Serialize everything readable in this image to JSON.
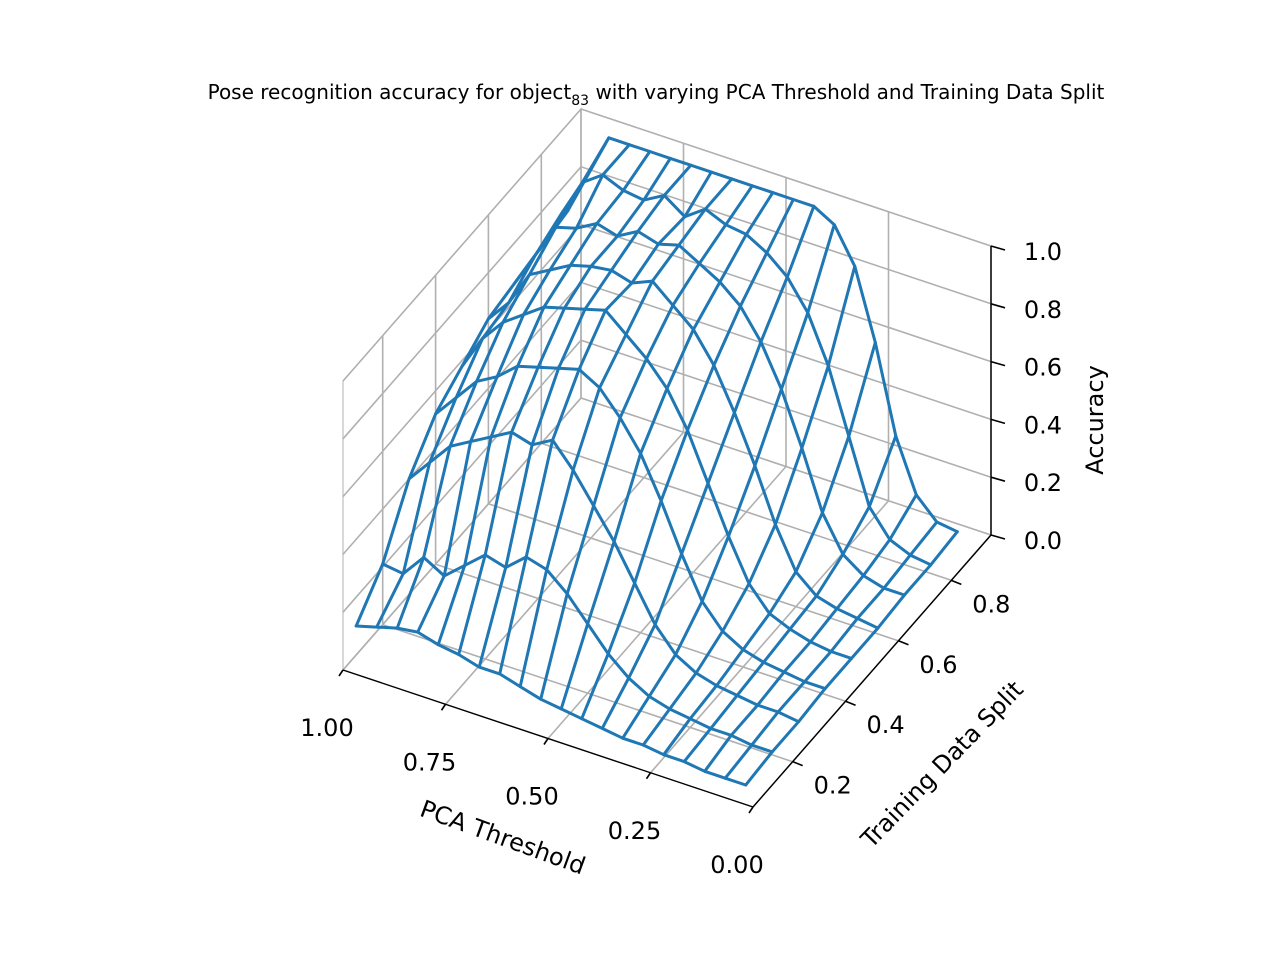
{
  "chart_data": {
    "type": "wireframe-3d",
    "title": {
      "prefix": "Pose recognition accuracy for object",
      "subscript": "83",
      "suffix": " with varying PCA Threshold and Training Data Split"
    },
    "xlabel": "PCA Threshold",
    "ylabel": "Training Data Split",
    "zlabel": "Accuracy",
    "xlim": [
      1.0,
      0.0
    ],
    "ylim": [
      0.05,
      0.95
    ],
    "zlim": [
      0.0,
      1.0
    ],
    "xticks": [
      {
        "value": 1.0,
        "label": "1.00"
      },
      {
        "value": 0.75,
        "label": "0.75"
      },
      {
        "value": 0.5,
        "label": "0.50"
      },
      {
        "value": 0.25,
        "label": "0.25"
      },
      {
        "value": 0.0,
        "label": "0.00"
      }
    ],
    "yticks": [
      {
        "value": 0.2,
        "label": "0.2"
      },
      {
        "value": 0.4,
        "label": "0.4"
      },
      {
        "value": 0.6,
        "label": "0.6"
      },
      {
        "value": 0.8,
        "label": "0.8"
      }
    ],
    "zticks": [
      {
        "value": 0.0,
        "label": "0.0"
      },
      {
        "value": 0.2,
        "label": "0.2"
      },
      {
        "value": 0.4,
        "label": "0.4"
      },
      {
        "value": 0.6,
        "label": "0.6"
      },
      {
        "value": 0.8,
        "label": "0.8"
      },
      {
        "value": 1.0,
        "label": "1.0"
      }
    ],
    "grid": true,
    "color": "#1f77b4",
    "pca_threshold": [
      1.0,
      0.95,
      0.9,
      0.85,
      0.8,
      0.75,
      0.7,
      0.65,
      0.6,
      0.55,
      0.5,
      0.45,
      0.4,
      0.35,
      0.3,
      0.25,
      0.2,
      0.15,
      0.1,
      0.05
    ],
    "training_split": [
      0.1,
      0.2,
      0.3,
      0.4,
      0.5,
      0.6,
      0.7,
      0.8,
      0.9
    ],
    "accuracy": [
      [
        0.1,
        0.21,
        0.4,
        0.52,
        0.58,
        0.64,
        0.66,
        0.68,
        0.7
      ],
      [
        0.12,
        0.2,
        0.48,
        0.6,
        0.7,
        0.72,
        0.78,
        0.82,
        0.85
      ],
      [
        0.14,
        0.28,
        0.56,
        0.68,
        0.78,
        0.84,
        0.9,
        0.95,
        1.0
      ],
      [
        0.15,
        0.24,
        0.6,
        0.72,
        0.83,
        0.88,
        0.92,
        1.0,
        1.0
      ],
      [
        0.13,
        0.3,
        0.64,
        0.78,
        0.88,
        0.92,
        0.96,
        0.97,
        1.0
      ],
      [
        0.12,
        0.36,
        0.68,
        0.8,
        0.9,
        0.94,
        0.94,
        0.96,
        1.0
      ],
      [
        0.1,
        0.34,
        0.66,
        0.82,
        0.92,
        0.95,
        0.98,
        1.0,
        1.0
      ],
      [
        0.1,
        0.4,
        0.7,
        0.84,
        0.94,
        0.93,
        0.96,
        0.95,
        1.0
      ],
      [
        0.08,
        0.38,
        0.62,
        0.8,
        0.88,
        0.96,
        0.98,
        1.0,
        1.0
      ],
      [
        0.06,
        0.32,
        0.52,
        0.72,
        0.82,
        0.9,
        0.94,
        0.97,
        1.0
      ],
      [
        0.05,
        0.24,
        0.42,
        0.62,
        0.74,
        0.84,
        0.9,
        0.96,
        1.0
      ],
      [
        0.04,
        0.16,
        0.3,
        0.48,
        0.62,
        0.74,
        0.84,
        0.92,
        1.0
      ],
      [
        0.03,
        0.1,
        0.18,
        0.32,
        0.46,
        0.6,
        0.74,
        0.86,
        1.0
      ],
      [
        0.02,
        0.06,
        0.1,
        0.18,
        0.3,
        0.44,
        0.6,
        0.76,
        0.96
      ],
      [
        0.02,
        0.04,
        0.06,
        0.1,
        0.16,
        0.26,
        0.42,
        0.6,
        0.84
      ],
      [
        0.01,
        0.03,
        0.04,
        0.06,
        0.08,
        0.12,
        0.22,
        0.38,
        0.6
      ],
      [
        0.01,
        0.02,
        0.03,
        0.04,
        0.05,
        0.06,
        0.1,
        0.16,
        0.3
      ],
      [
        0.0,
        0.02,
        0.02,
        0.03,
        0.03,
        0.04,
        0.05,
        0.07,
        0.12
      ],
      [
        0.0,
        0.01,
        0.02,
        0.02,
        0.02,
        0.03,
        0.03,
        0.04,
        0.05
      ],
      [
        0.0,
        0.01,
        0.01,
        0.02,
        0.02,
        0.02,
        0.03,
        0.03,
        0.04
      ]
    ]
  }
}
